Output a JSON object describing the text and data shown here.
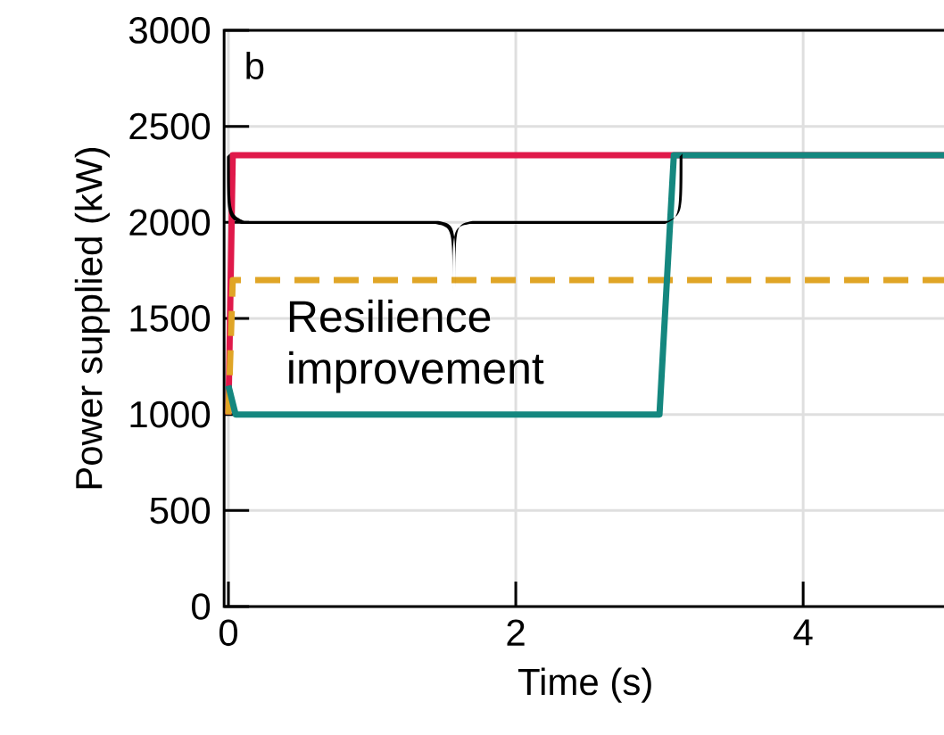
{
  "chart_data": {
    "type": "line",
    "xlabel": "Time (s)",
    "ylabel": "Power supplied (kW)",
    "xlim": [
      -0.03,
      5
    ],
    "ylim": [
      0,
      3000
    ],
    "xticks": [
      0,
      2,
      4
    ],
    "yticks": [
      0,
      500,
      1000,
      1500,
      2000,
      2500,
      3000
    ],
    "grid": true,
    "marker": "none",
    "annotations": [
      "b",
      "Resilience improvement"
    ],
    "series": [
      {
        "color": "#e0194a",
        "x": [
          0,
          0.03,
          5
        ],
        "values": [
          1000,
          2350,
          2350
        ]
      },
      {
        "color": "#e0a526",
        "line_style": "dashed",
        "x": [
          0,
          0.03,
          5
        ],
        "values": [
          1000,
          1700,
          1700
        ]
      },
      {
        "color": "#14877f",
        "x": [
          0,
          0.05,
          3.0,
          3.1,
          5
        ],
        "values": [
          1150,
          1000,
          1000,
          2350,
          2350
        ]
      }
    ]
  }
}
